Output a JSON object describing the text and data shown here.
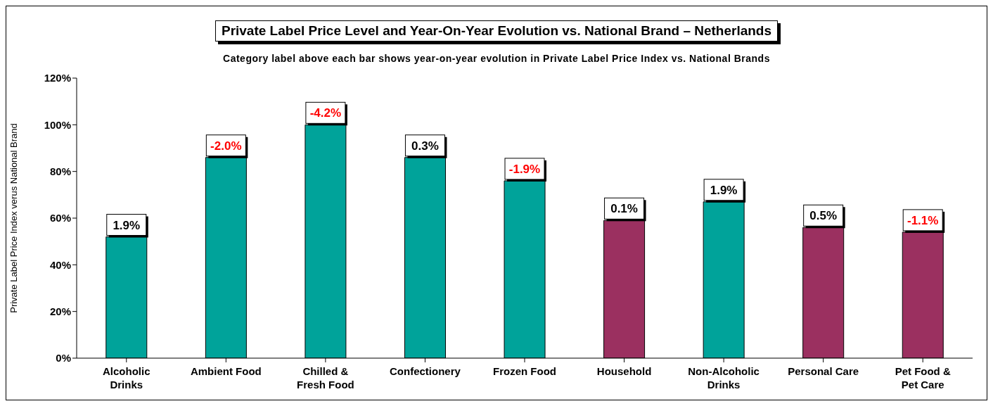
{
  "chart_data": {
    "type": "bar",
    "title": "Private Label Price Level and Year-On-Year Evolution vs. National Brand – Netherlands",
    "subtitle": "Category label above each bar shows year-on-year evolution in Private Label Price Index vs. National Brands",
    "ylabel": "Private Label Price Index verus National Brand",
    "categories": [
      "Alcoholic Drinks",
      "Ambient Food",
      "Chilled & Fresh Food",
      "Confectionery",
      "Frozen Food",
      "Household",
      "Non-Alcoholic Drinks",
      "Personal Care",
      "Pet Food & Pet Care"
    ],
    "values": [
      52,
      86,
      100,
      86,
      76,
      59,
      67,
      56,
      54
    ],
    "colors": [
      "#00a39a",
      "#00a39a",
      "#00a39a",
      "#00a39a",
      "#00a39a",
      "#9b3060",
      "#00a39a",
      "#9b3060",
      "#9b3060"
    ],
    "ylim": [
      0,
      120
    ],
    "yticks": [
      {
        "value": 0,
        "label": "0%"
      },
      {
        "value": 20,
        "label": "20%"
      },
      {
        "value": 40,
        "label": "40%"
      },
      {
        "value": 60,
        "label": "60%"
      },
      {
        "value": 80,
        "label": "80%"
      },
      {
        "value": 100,
        "label": "100%"
      },
      {
        "value": 120,
        "label": "120%"
      }
    ],
    "grid": false,
    "legend": false,
    "annotations": [
      {
        "text": "1.9%",
        "x": "Alcoholic Drinks",
        "y": 52
      },
      {
        "text": "-2.0%",
        "x": "Ambient Food",
        "y": 86
      },
      {
        "text": "-4.2%",
        "x": "Chilled & Fresh Food",
        "y": 100
      },
      {
        "text": "0.3%",
        "x": "Confectionery",
        "y": 86
      },
      {
        "text": "-1.9%",
        "x": "Frozen Food",
        "y": 76
      },
      {
        "text": "0.1%",
        "x": "Household",
        "y": 59
      },
      {
        "text": "1.9%",
        "x": "Non-Alcoholic Drinks",
        "y": 67
      },
      {
        "text": "0.5%",
        "x": "Personal Care",
        "y": 56
      },
      {
        "text": "-1.1%",
        "x": "Pet Food & Pet Care",
        "y": 54
      }
    ]
  }
}
